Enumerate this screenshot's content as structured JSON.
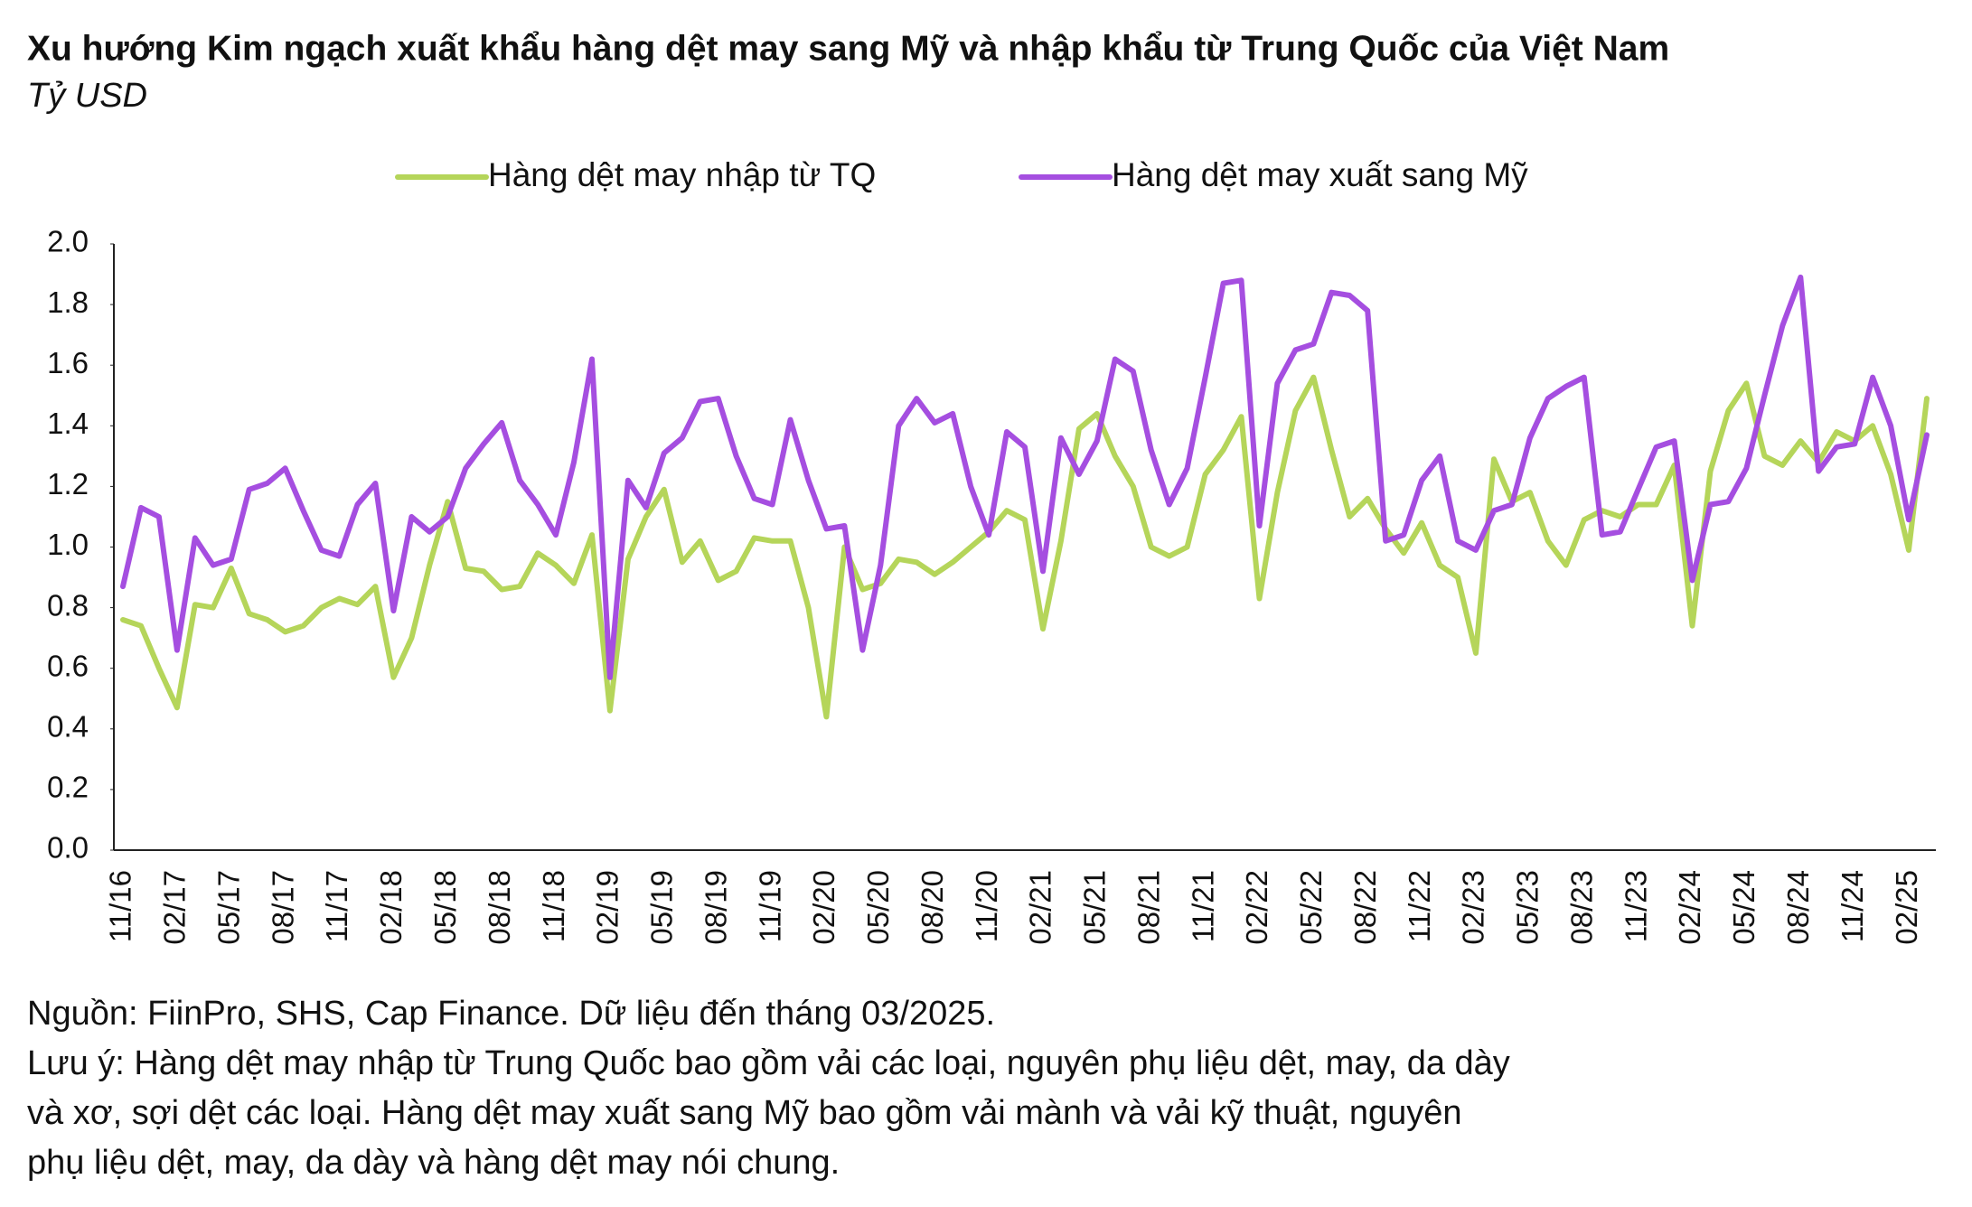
{
  "chart_data": {
    "type": "line",
    "title": "Xu hướng Kim ngạch xuất khẩu hàng dệt may sang Mỹ và nhập khẩu từ Trung Quốc của Việt Nam",
    "subtitle": "Tỷ USD",
    "categories": [
      "11/16",
      null,
      null,
      "02/17",
      null,
      null,
      "05/17",
      null,
      null,
      "08/17",
      null,
      null,
      "11/17",
      null,
      null,
      "02/18",
      null,
      null,
      "05/18",
      null,
      null,
      "08/18",
      null,
      null,
      "11/18",
      null,
      null,
      "02/19",
      null,
      null,
      "05/19",
      null,
      null,
      "08/19",
      null,
      null,
      "11/19",
      null,
      null,
      "02/20",
      null,
      null,
      "05/20",
      null,
      null,
      "08/20",
      null,
      null,
      "11/20",
      null,
      null,
      "02/21",
      null,
      null,
      "05/21",
      null,
      null,
      "08/21",
      null,
      null,
      "11/21",
      null,
      null,
      "02/22",
      null,
      null,
      "05/22",
      null,
      null,
      "08/22",
      null,
      null,
      "11/22",
      null,
      null,
      "02/23",
      null,
      null,
      "05/23",
      null,
      null,
      "08/23",
      null,
      null,
      "11/23",
      null,
      null,
      "02/24",
      null,
      null,
      "05/24",
      null,
      null,
      "08/24",
      null,
      null,
      "11/24",
      null,
      null,
      "02/25",
      null
    ],
    "series": [
      {
        "name": "Hàng dệt may nhập từ TQ",
        "color": "#b5d55a",
        "values": [
          0.76,
          0.74,
          0.6,
          0.47,
          0.81,
          0.8,
          0.93,
          0.78,
          0.76,
          0.72,
          0.74,
          0.8,
          0.83,
          0.81,
          0.87,
          0.57,
          0.7,
          0.94,
          1.15,
          0.93,
          0.92,
          0.86,
          0.87,
          0.98,
          0.94,
          0.88,
          1.04,
          0.46,
          0.96,
          1.1,
          1.19,
          0.95,
          1.02,
          0.89,
          0.92,
          1.03,
          1.02,
          1.02,
          0.8,
          0.44,
          1.0,
          0.86,
          0.88,
          0.96,
          0.95,
          0.91,
          0.95,
          1.0,
          1.05,
          1.12,
          1.09,
          0.73,
          1.02,
          1.39,
          1.44,
          1.3,
          1.2,
          1.0,
          0.97,
          1.0,
          1.24,
          1.32,
          1.43,
          0.83,
          1.18,
          1.45,
          1.56,
          1.32,
          1.1,
          1.16,
          1.06,
          0.98,
          1.08,
          0.94,
          0.9,
          0.65,
          1.29,
          1.15,
          1.18,
          1.02,
          0.94,
          1.09,
          1.12,
          1.1,
          1.14,
          1.14,
          1.27,
          0.74,
          1.25,
          1.45,
          1.54,
          1.3,
          1.27,
          1.35,
          1.28,
          1.38,
          1.35,
          1.4,
          1.24,
          0.99,
          1.49
        ]
      },
      {
        "name": "Hàng dệt may xuất sang Mỹ",
        "color": "#a54ee0",
        "values": [
          0.87,
          1.13,
          1.1,
          0.66,
          1.03,
          0.94,
          0.96,
          1.19,
          1.21,
          1.26,
          1.12,
          0.99,
          0.97,
          1.14,
          1.21,
          0.79,
          1.1,
          1.05,
          1.1,
          1.26,
          1.34,
          1.41,
          1.22,
          1.14,
          1.04,
          1.28,
          1.62,
          0.57,
          1.22,
          1.13,
          1.31,
          1.36,
          1.48,
          1.49,
          1.3,
          1.16,
          1.14,
          1.42,
          1.22,
          1.06,
          1.07,
          0.66,
          0.94,
          1.4,
          1.49,
          1.41,
          1.44,
          1.2,
          1.04,
          1.38,
          1.33,
          0.92,
          1.36,
          1.24,
          1.35,
          1.62,
          1.58,
          1.32,
          1.14,
          1.26,
          1.56,
          1.87,
          1.88,
          1.07,
          1.54,
          1.65,
          1.67,
          1.84,
          1.83,
          1.78,
          1.02,
          1.04,
          1.22,
          1.3,
          1.02,
          0.99,
          1.12,
          1.14,
          1.36,
          1.49,
          1.53,
          1.56,
          1.04,
          1.05,
          1.19,
          1.33,
          1.35,
          0.89,
          1.14,
          1.15,
          1.26,
          1.5,
          1.73,
          1.89,
          1.25,
          1.33,
          1.34,
          1.56,
          1.4,
          1.09,
          1.37
        ]
      }
    ],
    "ylim": [
      0,
      2
    ],
    "yticks": [
      {
        "value": 0,
        "label": "0.0"
      },
      0.2,
      0.4,
      0.6,
      0.8,
      {
        "value": 1,
        "label": "1.0"
      },
      1.2,
      1.4,
      1.6,
      1.8,
      {
        "value": 2,
        "label": "2.0"
      }
    ],
    "grid": false,
    "legend": "top",
    "notes": [
      "Nguồn: FiinPro, SHS, Cap Finance. Dữ liệu đến tháng 03/2025.",
      "Lưu ý: Hàng dệt may nhập từ Trung Quốc bao gồm vải các loại, nguyên phụ liệu dệt, may, da dày",
      "và xơ, sợi dệt các loại. Hàng dệt may xuất sang Mỹ bao gồm vải mành và vải kỹ thuật, nguyên",
      "phụ liệu dệt, may, da dày và hàng dệt may nói chung."
    ]
  }
}
